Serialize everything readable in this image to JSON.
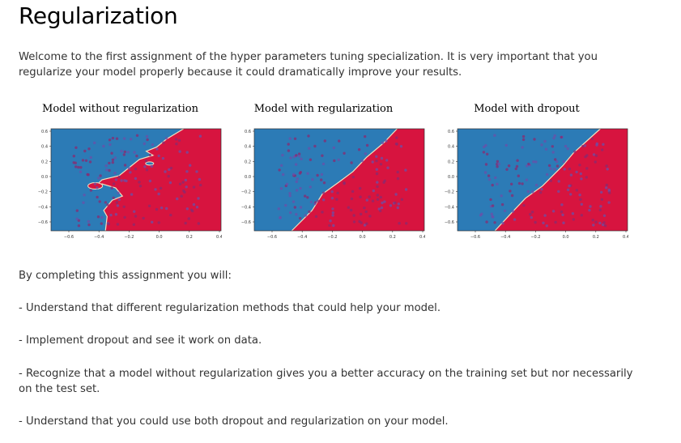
{
  "page": {
    "title": "Regularization",
    "intro": "Welcome to the first assignment of the hyper parameters tuning specialization. It is very important that you regularize your model properly because it could dramatically improve your results."
  },
  "figures": [
    {
      "title": "Model without regularization"
    },
    {
      "title": "Model with regularization"
    },
    {
      "title": "Model with dropout"
    }
  ],
  "axes": {
    "y_ticks": [
      "0.6",
      "0.4",
      "0.2",
      "0.0",
      "−0.2",
      "−0.4",
      "−0.6"
    ],
    "x_ticks": [
      "−0.6",
      "−0.4",
      "−0.2",
      "0.0",
      "0.2",
      "0.4"
    ]
  },
  "colors": {
    "blue_region": "#2c7bb6",
    "red_region": "#d7143f"
  },
  "objectives": {
    "heading": "By completing this assignment you will:",
    "items": [
      "- Understand that different regularization methods that could help your model.",
      "- Implement dropout and see it work on data.",
      "- Recognize that a model without regularization gives you a better accuracy on the training set but nor necessarily on the test set.",
      "- Understand that you could use both dropout and regularization on your model."
    ]
  }
}
